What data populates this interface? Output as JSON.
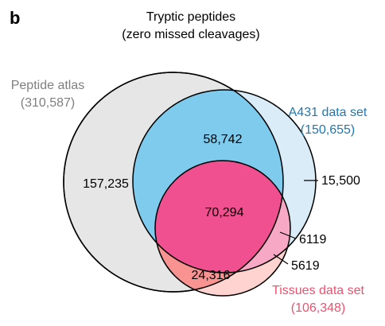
{
  "panel_label": "b",
  "title": {
    "line1": "Tryptic peptides",
    "line2": "(zero missed cleavages)"
  },
  "sets": {
    "peptide_atlas": {
      "name": "Peptide atlas",
      "total": "(310,587)",
      "color": "#7f7f7f",
      "fill": "#e6e6e6"
    },
    "a431": {
      "name": "A431 data set",
      "total": "(150,655)",
      "color": "#1f78b4",
      "fill": "#d9ecf7"
    },
    "tissues": {
      "name": "Tissues data set",
      "total": "(106,348)",
      "color": "#f0506e",
      "fill": "#ffd3cf"
    }
  },
  "regions": {
    "atlas_only": "157,235",
    "atlas_a431": "58,742",
    "all_three": "70,294",
    "atlas_tissues": "24,316",
    "a431_only": "15,500",
    "a431_tissues": "6119",
    "tissues_only": "5619"
  },
  "region_colors": {
    "atlas_a431": "#7ecbee",
    "all_three": "#f0508f",
    "atlas_tissues": "#f99391",
    "a431_tissues": "#f7a8c4"
  }
}
